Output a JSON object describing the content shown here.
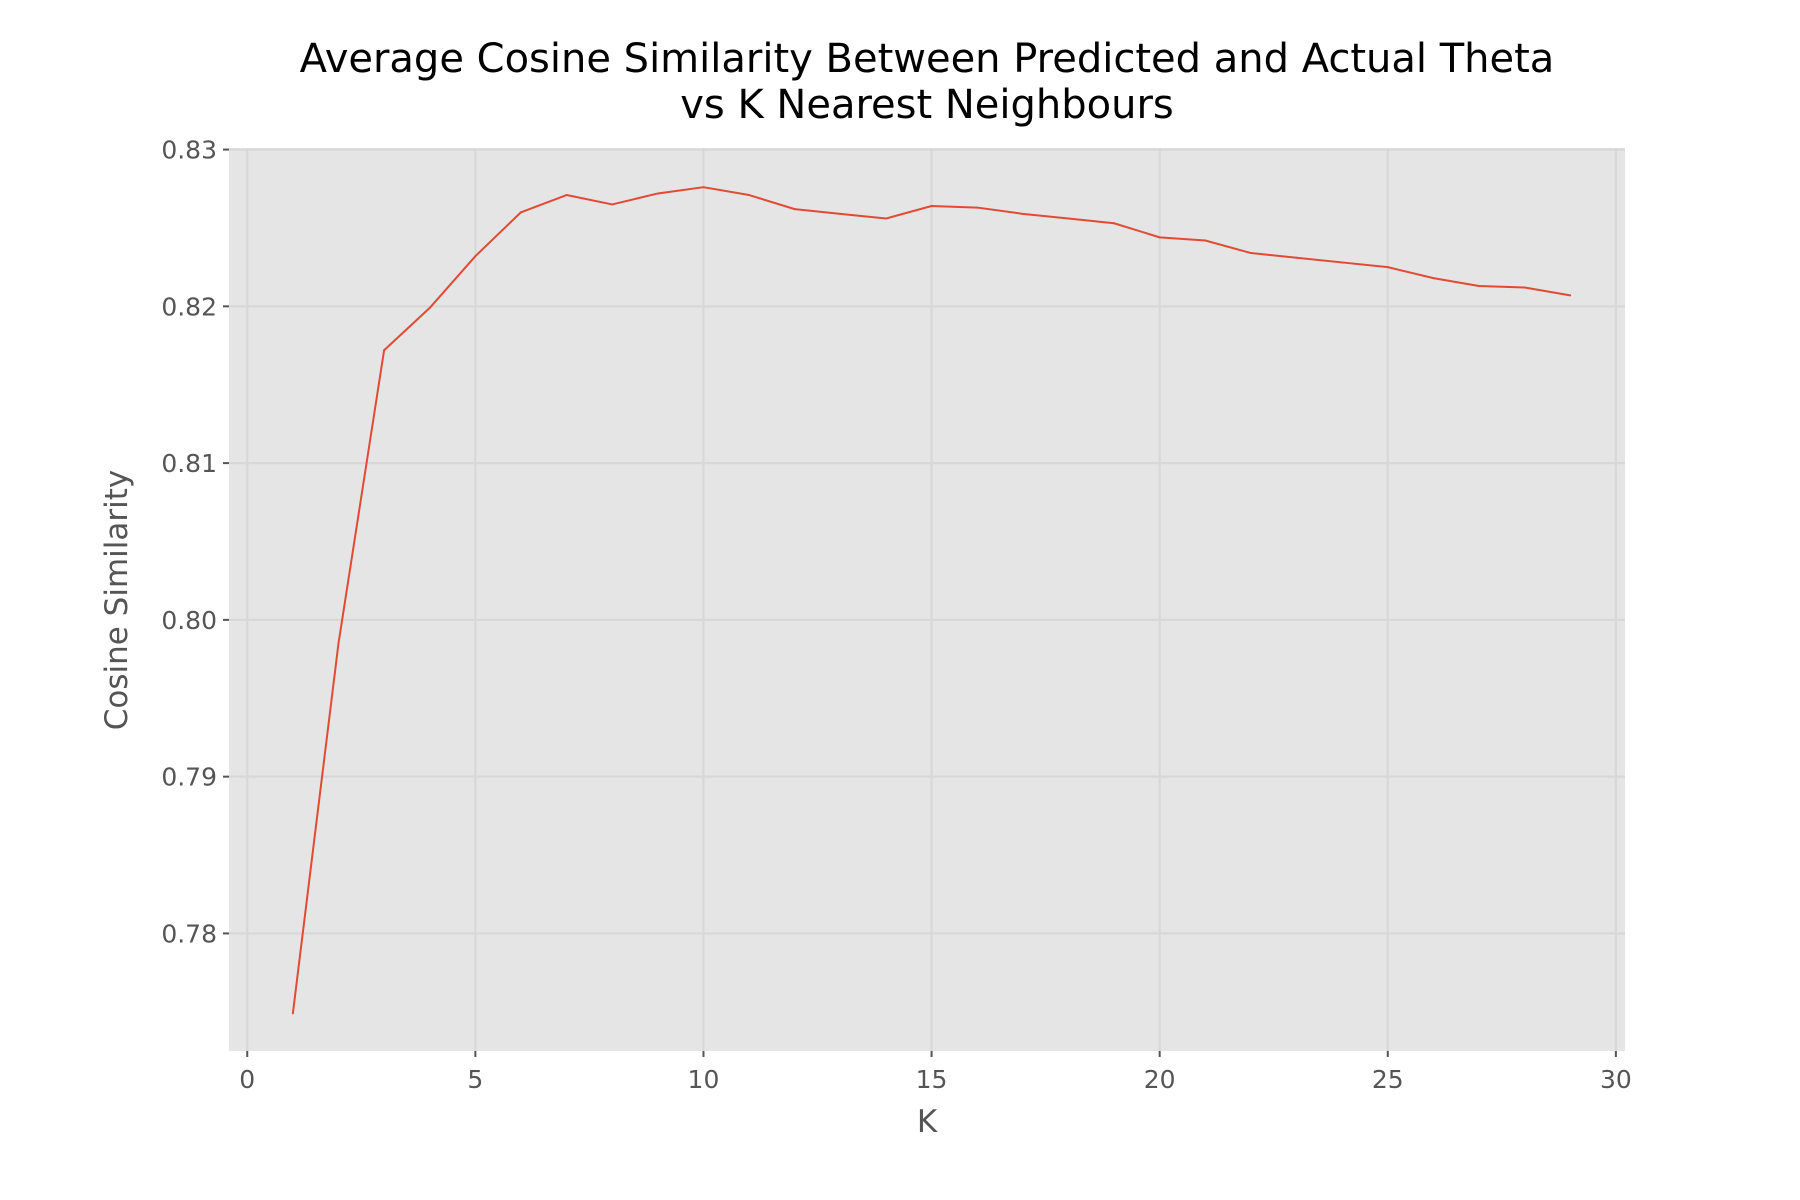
{
  "chart_data": {
    "type": "line",
    "title_lines": [
      "Average Cosine Similarity Between Predicted and Actual Theta",
      "vs K Nearest Neighbours"
    ],
    "xlabel": "K",
    "ylabel": "Cosine Similarity",
    "xlim": [
      -0.4,
      30.2
    ],
    "ylim": [
      0.7725,
      0.8301
    ],
    "xticks": [
      0,
      5,
      10,
      15,
      20,
      25,
      30
    ],
    "xtick_labels": [
      "0",
      "5",
      "10",
      "15",
      "20",
      "25",
      "30"
    ],
    "yticks": [
      0.78,
      0.79,
      0.8,
      0.81,
      0.82,
      0.83
    ],
    "ytick_labels": [
      "0.78",
      "0.79",
      "0.80",
      "0.81",
      "0.82",
      "0.83"
    ],
    "grid": true,
    "colors": {
      "panel": "#e5e5e5",
      "grid": "#d8d8d8",
      "line": "#e24a33",
      "tick": "#555555"
    },
    "series": [
      {
        "x": [
          1,
          2,
          3,
          4,
          5,
          6,
          7,
          8,
          9,
          10,
          11,
          12,
          13,
          14,
          15,
          16,
          17,
          18,
          19,
          20,
          21,
          22,
          23,
          24,
          25,
          26,
          27,
          28,
          29
        ],
        "y": [
          0.7749,
          0.7985,
          0.8172,
          0.8199,
          0.8232,
          0.826,
          0.8271,
          0.8265,
          0.8272,
          0.8276,
          0.8271,
          0.8262,
          0.8259,
          0.8256,
          0.8264,
          0.8263,
          0.8259,
          0.8256,
          0.8253,
          0.8244,
          0.8242,
          0.8234,
          0.8231,
          0.8228,
          0.8225,
          0.8218,
          0.8213,
          0.8212,
          0.8207
        ]
      }
    ]
  }
}
